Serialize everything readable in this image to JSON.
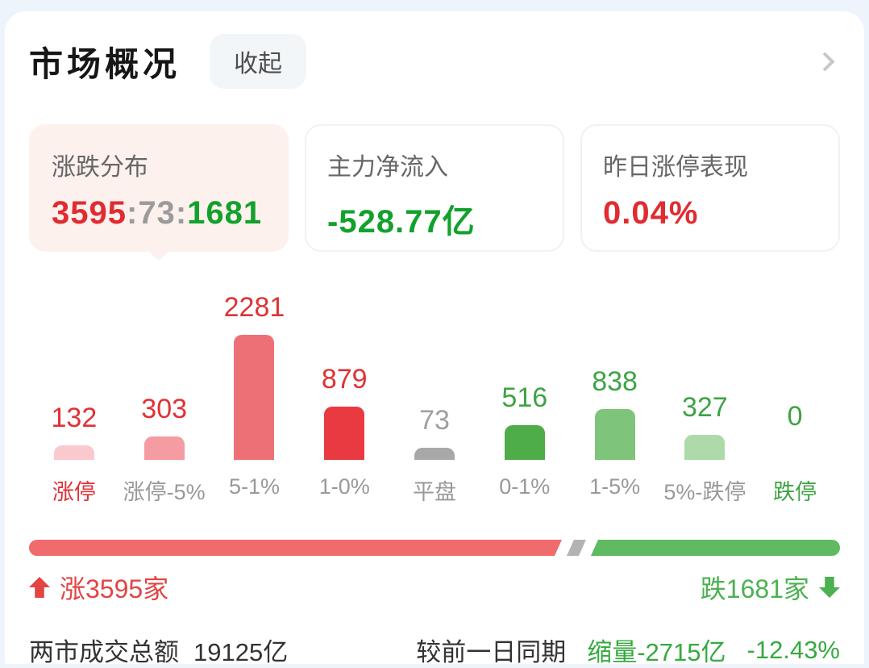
{
  "header": {
    "title": "市场概况",
    "collapse_label": "收起"
  },
  "cards": {
    "distribution": {
      "label": "涨跌分布",
      "up": "3595",
      "flat": "73",
      "down": "1681",
      "separator": ":"
    },
    "net_inflow": {
      "label": "主力净流入",
      "value": "-528.77亿"
    },
    "yesterday_limit_up": {
      "label": "昨日涨停表现",
      "value": "0.04%"
    }
  },
  "chart_data": {
    "type": "bar",
    "title": "涨跌分布",
    "categories": [
      "涨停",
      "涨停-5%",
      "5-1%",
      "1-0%",
      "平盘",
      "0-1%",
      "1-5%",
      "5%-跌停",
      "跌停"
    ],
    "values": [
      132,
      303,
      2281,
      879,
      73,
      516,
      838,
      327,
      0
    ],
    "bar_colors": [
      "#fac9ce",
      "#f59ba2",
      "#ee7077",
      "#e93a42",
      "#a8a8a8",
      "#4ead49",
      "#7ec47a",
      "#addaa8",
      "#ffffff"
    ],
    "value_colors": [
      "#e03236",
      "#e03236",
      "#e03236",
      "#e03236",
      "#a0a0a0",
      "#3ea344",
      "#3ea344",
      "#3ea344",
      "#3ea344"
    ],
    "label_colors": [
      "#e03236",
      "#999999",
      "#999999",
      "#999999",
      "#999999",
      "#999999",
      "#999999",
      "#999999",
      "#3ea344"
    ],
    "xlabel": "",
    "ylabel": "",
    "ylim": [
      0,
      2281
    ],
    "grid": false,
    "legend": false
  },
  "breadth_bar": {
    "up": 3595,
    "flat": 73,
    "down": 1681,
    "colors": {
      "up": "#f06c6c",
      "flat": "#b3b3b3",
      "down": "#5fba62"
    }
  },
  "counts": {
    "up_label": "涨3595家",
    "down_label": "跌1681家"
  },
  "turnover": {
    "label": "两市成交总额",
    "value": "19125亿"
  },
  "comparison": {
    "label": "较前一日同期",
    "value": "缩量-2715亿",
    "pct": "-12.43%"
  },
  "colors": {
    "up_red_text": "#e02c31",
    "down_green_text": "#12a12c",
    "neutral_gray_text": "#9b9b9b",
    "active_card_bg": "#fdf1ee",
    "page_bg": "#edf4fb"
  }
}
